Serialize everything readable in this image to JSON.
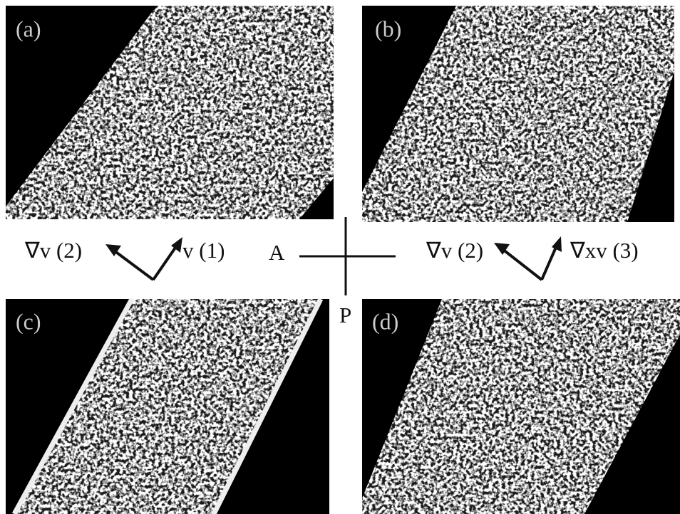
{
  "panels": [
    {
      "label": "(a)"
    },
    {
      "label": "(b)"
    },
    {
      "label": "(c)"
    },
    {
      "label": "(d)"
    }
  ],
  "axes": {
    "left": {
      "first": "∇v (2)",
      "second": "v (1)"
    },
    "right": {
      "first": "∇v (2)",
      "second": "∇xv (3)"
    },
    "analyzer": "A",
    "polarizer": "P"
  }
}
